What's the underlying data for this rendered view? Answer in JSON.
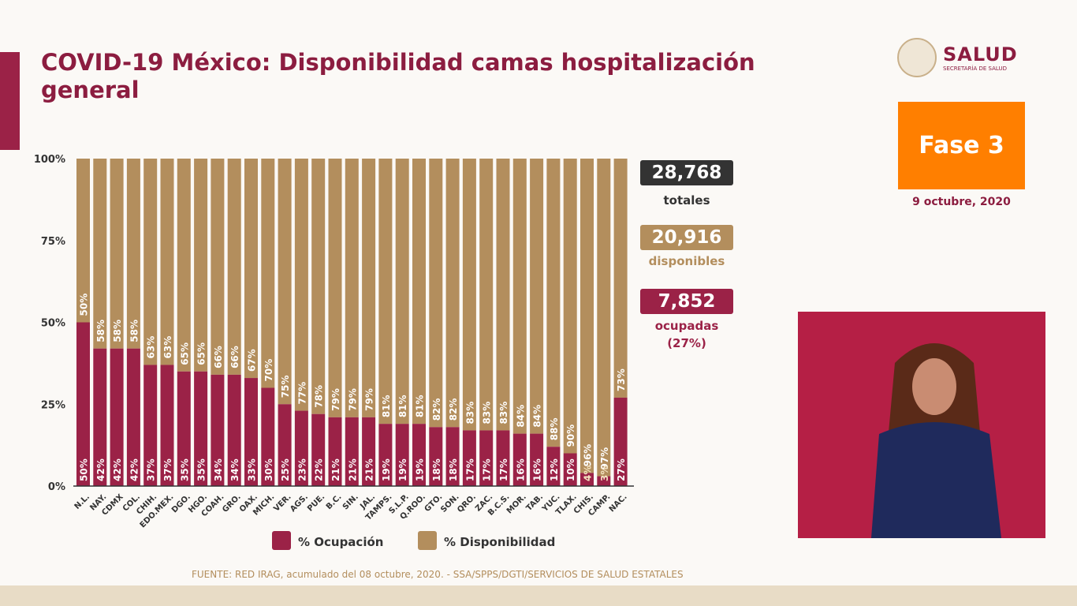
{
  "title": "COVID-19 México: Disponibilidad camas hospitalización general",
  "logo": {
    "name": "SALUD",
    "sub": "SECRETARÍA DE SALUD"
  },
  "phase": "Fase 3",
  "date": "9 octubre, 2020",
  "summary": {
    "totales_value": "28,768",
    "totales_label": "totales",
    "disponibles_value": "20,916",
    "disponibles_label": "disponibles",
    "ocupadas_value": "7,852",
    "ocupadas_label": "ocupadas",
    "ocupadas_pct": "(27%)"
  },
  "source": "FUENTE: RED IRAG, acumulado del 08 octubre, 2020. -  SSA/SPPS/DGTI/SERVICIOS DE SALUD ESTATALES",
  "colors": {
    "ocupacion": "#9b2247",
    "disponibilidad": "#b38e5d",
    "dark": "#333333"
  },
  "chart_data": {
    "type": "bar",
    "stacked": true,
    "ylim": [
      0,
      100
    ],
    "yticks": [
      "0%",
      "25%",
      "50%",
      "75%",
      "100%"
    ],
    "categories": [
      "N.L.",
      "NAY.",
      "CDMX",
      "COL.",
      "CHIH.",
      "EDO.MEX.",
      "DGO.",
      "HGO.",
      "COAH.",
      "GRO.",
      "OAX.",
      "MICH.",
      "VER.",
      "AGS.",
      "PUE.",
      "B.C.",
      "SIN.",
      "JAL.",
      "TAMPS.",
      "S.L.P.",
      "Q.ROO.",
      "GTO.",
      "SON.",
      "QRO.",
      "ZAC.",
      "B.C.S.",
      "MOR.",
      "TAB.",
      "YUC.",
      "TLAX.",
      "CHIS.",
      "CAMP.",
      "NAC."
    ],
    "series": [
      {
        "name": "% Ocupación",
        "values": [
          50,
          42,
          42,
          42,
          37,
          37,
          35,
          35,
          34,
          34,
          33,
          30,
          25,
          23,
          22,
          21,
          21,
          21,
          19,
          19,
          19,
          18,
          18,
          17,
          17,
          17,
          16,
          16,
          12,
          10,
          4,
          3,
          27
        ]
      },
      {
        "name": "% Disponibilidad",
        "values": [
          50,
          58,
          58,
          58,
          63,
          63,
          65,
          65,
          66,
          66,
          67,
          70,
          75,
          77,
          78,
          79,
          79,
          79,
          81,
          81,
          81,
          82,
          82,
          83,
          83,
          83,
          84,
          84,
          88,
          90,
          96,
          97,
          73
        ]
      }
    ],
    "legend": "bottom"
  }
}
